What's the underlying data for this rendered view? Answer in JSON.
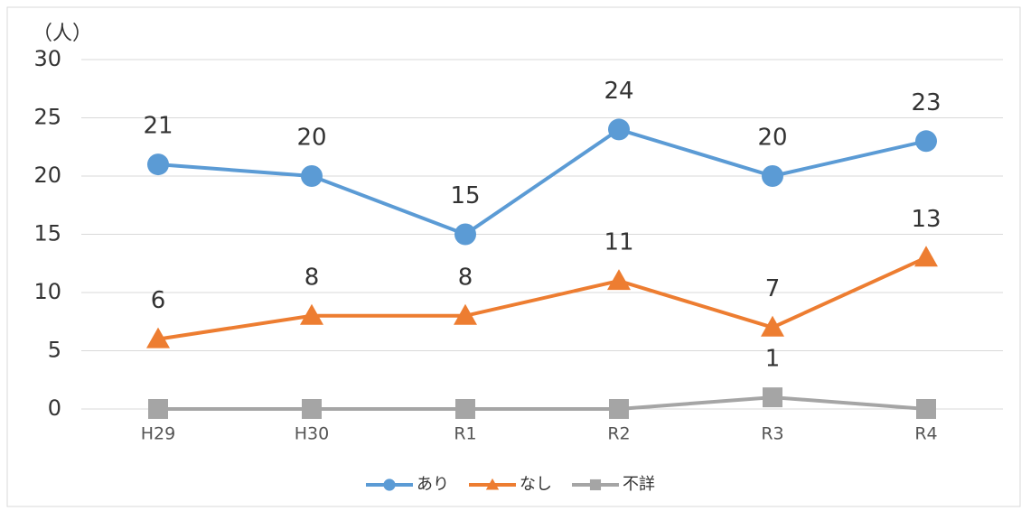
{
  "chart_data": {
    "type": "line",
    "y_label": "（人）",
    "categories": [
      "H29",
      "H30",
      "R1",
      "R2",
      "R3",
      "R4"
    ],
    "series": [
      {
        "name": "あり",
        "color": "#5b9bd5",
        "marker": "circle",
        "values": [
          21,
          20,
          15,
          24,
          20,
          23
        ]
      },
      {
        "name": "なし",
        "color": "#ed7d31",
        "marker": "triangle",
        "values": [
          6,
          8,
          8,
          11,
          7,
          13
        ]
      },
      {
        "name": "不詳",
        "color": "#a5a5a5",
        "marker": "square",
        "values": [
          0,
          0,
          0,
          0,
          1,
          0
        ],
        "value_labels": [
          null,
          null,
          null,
          null,
          "1",
          null
        ]
      }
    ],
    "ylim": [
      0,
      30
    ],
    "yticks": [
      0,
      5,
      10,
      15,
      20,
      25,
      30
    ],
    "grid": true,
    "legend": "bottom"
  }
}
